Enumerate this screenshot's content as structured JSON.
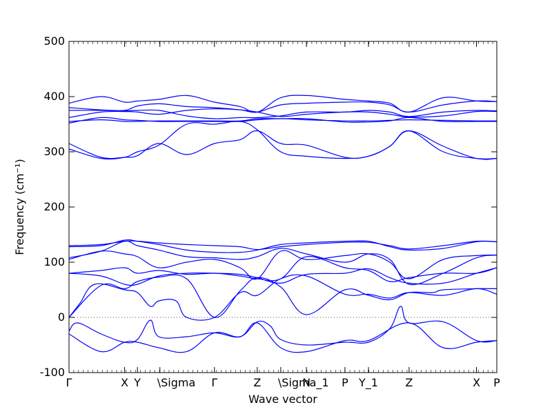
{
  "chart_data": {
    "type": "line",
    "title": "",
    "xlabel": "Wave vector",
    "ylabel": "Frequency (cm⁻¹)",
    "ylim": [
      -100,
      500
    ],
    "xlim": [
      0,
      20
    ],
    "y_ticks": [
      -100,
      0,
      100,
      200,
      300,
      400,
      500
    ],
    "grid": false,
    "legend": "none",
    "zero_line": {
      "y": 0,
      "style": "dotted"
    },
    "colors": {
      "bands": "#0000ff",
      "axes": "#000000",
      "zero_line": "#555555"
    },
    "high_symmetry_points": [
      {
        "x": 0.0,
        "label": "Γ"
      },
      {
        "x": 2.6,
        "label": "X"
      },
      {
        "x": 3.2,
        "label": "Y"
      },
      {
        "x": 4.25,
        "label": "\\Sigma"
      },
      {
        "x": 6.8,
        "label": "Γ"
      },
      {
        "x": 8.8,
        "label": "Z"
      },
      {
        "x": 9.9,
        "label": "\\Sigma_1"
      },
      {
        "x": 11.1,
        "label": "N"
      },
      {
        "x": 12.9,
        "label": "P"
      },
      {
        "x": 14.0,
        "label": "Y_1"
      },
      {
        "x": 15.9,
        "label": "Z"
      },
      {
        "x": 19.05,
        "label": "X"
      },
      {
        "x": 20.0,
        "label": "P"
      }
    ],
    "series": [
      {
        "x": [
          0,
          1.5,
          2.6,
          3.2,
          4.2,
          5.5,
          6.8,
          8.0,
          8.8,
          9.9,
          11.1,
          12.9,
          14.0,
          15.9,
          17.5,
          19.05,
          20
        ],
        "values": [
          -30,
          -62,
          -45,
          -45,
          -55,
          -62,
          -28,
          -35,
          -10,
          -55,
          -62,
          -42,
          -42,
          -10,
          -55,
          -45,
          -42
        ]
      },
      {
        "x": [
          0,
          0.4,
          1.5,
          2.6,
          3.2,
          3.8,
          4.2,
          5.5,
          6.8,
          8.0,
          8.8,
          9.4,
          9.9,
          11.1,
          12.9,
          14.0,
          15.0,
          15.5,
          15.9,
          17.5,
          19.05,
          20
        ],
        "values": [
          -25,
          -10,
          -30,
          -45,
          -40,
          -5,
          -35,
          -35,
          -28,
          -35,
          -8,
          -15,
          -40,
          -50,
          -45,
          -45,
          -20,
          20,
          -10,
          -8,
          -42,
          -42
        ]
      },
      {
        "x": [
          0,
          0.5,
          1.2,
          2.6,
          3.2,
          3.8,
          4.2,
          5.0,
          5.5,
          6.8,
          8.0,
          8.8,
          9.9,
          11.1,
          12.9,
          14.0,
          15.0,
          15.9,
          17.5,
          19.05,
          20
        ],
        "values": [
          0,
          25,
          60,
          50,
          45,
          20,
          30,
          30,
          0,
          0,
          45,
          40,
          70,
          75,
          42,
          42,
          35,
          45,
          40,
          52,
          42
        ]
      },
      {
        "x": [
          0,
          1.5,
          2.6,
          3.2,
          4.2,
          5.5,
          6.8,
          8.0,
          8.8,
          9.9,
          11.1,
          12.9,
          14.0,
          15.0,
          15.9,
          17.0,
          17.5,
          19.05,
          20
        ],
        "values": [
          0,
          58,
          52,
          65,
          73,
          70,
          0,
          48,
          72,
          55,
          5,
          50,
          40,
          32,
          45,
          45,
          50,
          52,
          52
        ]
      },
      {
        "x": [
          0,
          1.5,
          2.6,
          3.2,
          4.2,
          5.5,
          6.8,
          8.0,
          8.8,
          9.9,
          11.1,
          12.9,
          14.0,
          15.0,
          15.9,
          17.5,
          19.05,
          20
        ],
        "values": [
          80,
          75,
          60,
          60,
          75,
          80,
          80,
          78,
          72,
          62,
          78,
          80,
          88,
          72,
          62,
          62,
          80,
          90
        ]
      },
      {
        "x": [
          0,
          1.5,
          2.6,
          3.2,
          4.2,
          5.5,
          6.8,
          8.0,
          8.8,
          9.9,
          11.1,
          12.9,
          14.0,
          15.0,
          15.9,
          17.5,
          19.05,
          20
        ],
        "values": [
          80,
          85,
          90,
          80,
          85,
          78,
          80,
          75,
          70,
          70,
          110,
          90,
          85,
          65,
          72,
          80,
          80,
          90
        ]
      },
      {
        "x": [
          0,
          1.5,
          2.6,
          3.2,
          4.2,
          5.5,
          6.8,
          8.0,
          8.8,
          9.9,
          11.1,
          12.9,
          14.0,
          15.0,
          15.9,
          17.5,
          19.05,
          20
        ],
        "values": [
          105,
          120,
          115,
          110,
          90,
          100,
          105,
          90,
          70,
          120,
          105,
          112,
          115,
          100,
          70,
          105,
          112,
          113
        ]
      },
      {
        "x": [
          0,
          1.5,
          2.6,
          3.2,
          4.2,
          5.5,
          6.8,
          8.0,
          8.8,
          9.9,
          11.1,
          12.9,
          14.0,
          15.0,
          15.9,
          17.5,
          19.05,
          20
        ],
        "values": [
          108,
          120,
          138,
          130,
          122,
          110,
          108,
          105,
          110,
          125,
          115,
          100,
          115,
          105,
          60,
          80,
          108,
          113
        ]
      },
      {
        "x": [
          0,
          1.5,
          2.6,
          3.2,
          4.2,
          5.5,
          6.8,
          8.0,
          8.8,
          9.9,
          11.1,
          12.9,
          14.0,
          15.0,
          15.9,
          17.5,
          19.05,
          20
        ],
        "values": [
          128,
          130,
          140,
          138,
          132,
          122,
          118,
          118,
          122,
          132,
          135,
          138,
          138,
          128,
          122,
          125,
          137,
          137
        ]
      },
      {
        "x": [
          0,
          1.5,
          2.6,
          3.2,
          4.2,
          5.5,
          6.8,
          8.0,
          8.8,
          9.9,
          11.1,
          12.9,
          14.0,
          15.0,
          15.9,
          17.5,
          19.05,
          20
        ],
        "values": [
          130,
          132,
          138,
          138,
          135,
          132,
          130,
          128,
          123,
          128,
          132,
          136,
          136,
          130,
          124,
          130,
          138,
          137
        ]
      },
      {
        "x": [
          0,
          1.5,
          2.6,
          3.2,
          4.2,
          5.5,
          6.8,
          8.0,
          8.8,
          9.9,
          11.1,
          12.9,
          14.0,
          15.0,
          15.9,
          17.5,
          19.05,
          20
        ],
        "values": [
          315,
          290,
          290,
          293,
          315,
          295,
          315,
          322,
          338,
          315,
          312,
          290,
          292,
          310,
          338,
          310,
          288,
          288
        ]
      },
      {
        "x": [
          0,
          1.5,
          2.6,
          3.2,
          4.2,
          5.5,
          6.8,
          8.0,
          8.8,
          9.9,
          11.1,
          12.9,
          14.0,
          15.0,
          15.9,
          17.5,
          19.05,
          20
        ],
        "values": [
          305,
          288,
          290,
          300,
          312,
          350,
          350,
          355,
          340,
          300,
          292,
          288,
          292,
          310,
          338,
          300,
          288,
          288
        ]
      },
      {
        "x": [
          0,
          1.5,
          2.6,
          3.2,
          4.2,
          5.5,
          6.8,
          8.0,
          8.8,
          9.9,
          11.1,
          12.9,
          14.0,
          15.0,
          15.9,
          17.5,
          19.05,
          20
        ],
        "values": [
          352,
          362,
          358,
          357,
          355,
          355,
          355,
          355,
          358,
          360,
          358,
          356,
          356,
          357,
          358,
          357,
          356,
          356
        ]
      },
      {
        "x": [
          0,
          1.5,
          2.6,
          3.2,
          4.2,
          5.5,
          6.8,
          8.0,
          8.8,
          9.9,
          11.1,
          12.9,
          14.0,
          15.0,
          15.9,
          17.5,
          19.05,
          20
        ],
        "values": [
          355,
          358,
          355,
          355,
          356,
          356,
          356,
          356,
          360,
          360,
          360,
          354,
          354,
          356,
          362,
          355,
          355,
          355
        ]
      },
      {
        "x": [
          0,
          1.5,
          2.6,
          3.2,
          4.2,
          5.5,
          6.8,
          8.0,
          8.8,
          9.9,
          11.1,
          12.9,
          14.0,
          15.0,
          15.9,
          17.5,
          19.05,
          20
        ],
        "values": [
          362,
          372,
          373,
          372,
          368,
          375,
          378,
          376,
          372,
          364,
          368,
          372,
          372,
          368,
          363,
          365,
          373,
          373
        ]
      },
      {
        "x": [
          0,
          1.5,
          2.6,
          3.2,
          4.2,
          5.5,
          6.8,
          8.0,
          8.8,
          9.9,
          11.1,
          12.9,
          14.0,
          15.0,
          15.9,
          17.5,
          19.05,
          20
        ],
        "values": [
          375,
          375,
          374,
          375,
          375,
          365,
          360,
          362,
          362,
          365,
          372,
          372,
          375,
          372,
          364,
          372,
          375,
          374
        ]
      },
      {
        "x": [
          0,
          1.5,
          2.6,
          3.2,
          4.2,
          5.5,
          6.8,
          8.0,
          8.8,
          9.9,
          11.1,
          12.9,
          14.0,
          15.0,
          15.9,
          17.5,
          19.05,
          20
        ],
        "values": [
          380,
          376,
          375,
          383,
          387,
          382,
          380,
          376,
          372,
          385,
          388,
          390,
          390,
          385,
          372,
          385,
          392,
          391
        ]
      },
      {
        "x": [
          0,
          1.5,
          2.6,
          3.2,
          4.2,
          5.5,
          6.8,
          8.0,
          8.8,
          9.9,
          11.1,
          12.9,
          14.0,
          15.0,
          15.9,
          17.5,
          19.05,
          20
        ],
        "values": [
          388,
          400,
          390,
          392,
          395,
          402,
          390,
          382,
          372,
          398,
          402,
          395,
          392,
          388,
          372,
          398,
          392,
          391
        ]
      }
    ]
  }
}
